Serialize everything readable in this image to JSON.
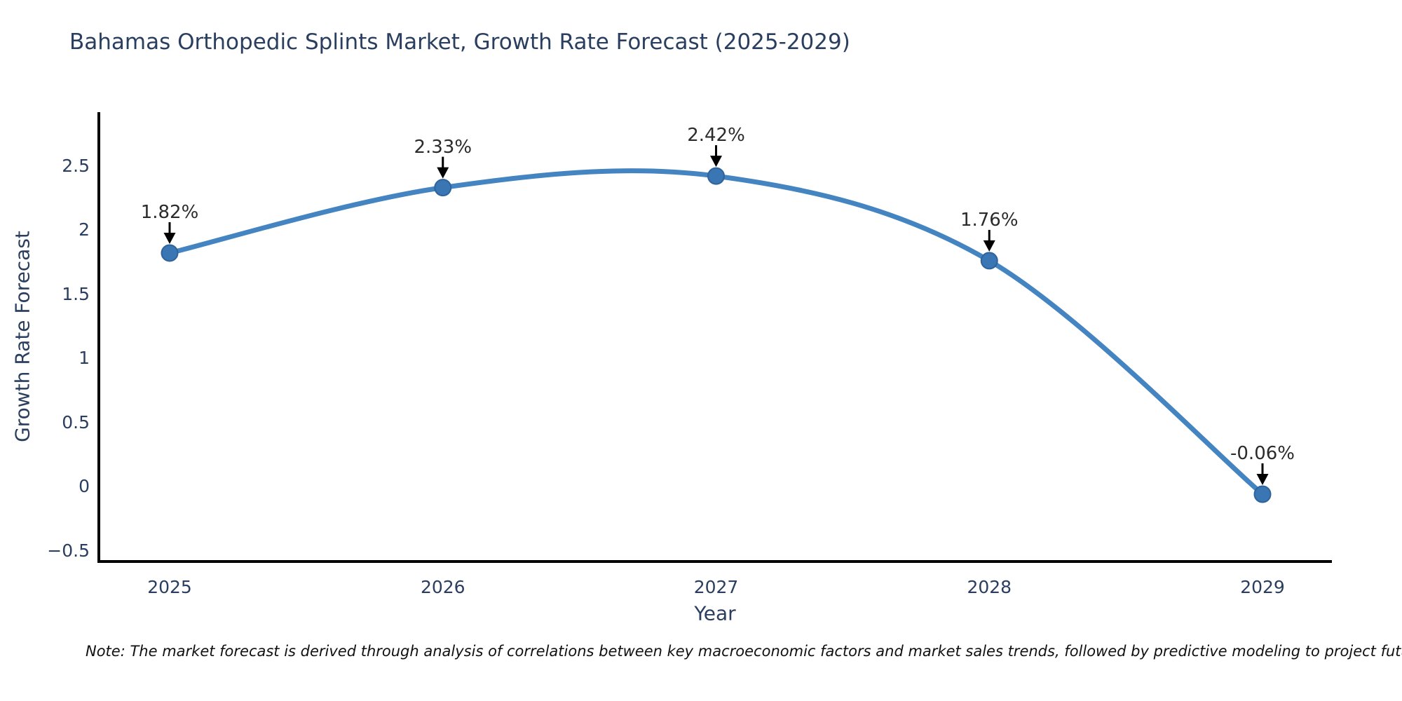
{
  "page": {
    "background": "#ffffff"
  },
  "chart_data": {
    "type": "line",
    "title": "Bahamas Orthopedic Splints Market, Growth Rate Forecast (2025-2029)",
    "xlabel": "Year",
    "ylabel": "Growth Rate Forecast",
    "x": [
      2025,
      2026,
      2027,
      2028,
      2029
    ],
    "series": [
      {
        "name": "Growth Rate Forecast",
        "values": [
          1.82,
          2.33,
          2.42,
          1.76,
          -0.06
        ]
      }
    ],
    "point_labels": [
      "1.82%",
      "2.33%",
      "2.42%",
      "1.76%",
      "-0.06%"
    ],
    "y_ticks": [
      2.5,
      2,
      1.5,
      1,
      0.5,
      0,
      -0.5
    ],
    "ylim": [
      -0.58,
      2.92
    ],
    "grid": false,
    "legend": false,
    "line_shape": "spline",
    "colors": {
      "line": "#4384c1",
      "marker": "#3a76b3",
      "marker_edge": "#2f639b",
      "axis": "#000000",
      "text": "#2a3f5f",
      "annotation_text": "#2b2b2b",
      "arrow": "#000000"
    }
  },
  "note": {
    "text": "Note: The market forecast is derived through analysis of correlations between key macroeconomic factors and market sales trends, followed by predictive modeling to project future sales."
  }
}
